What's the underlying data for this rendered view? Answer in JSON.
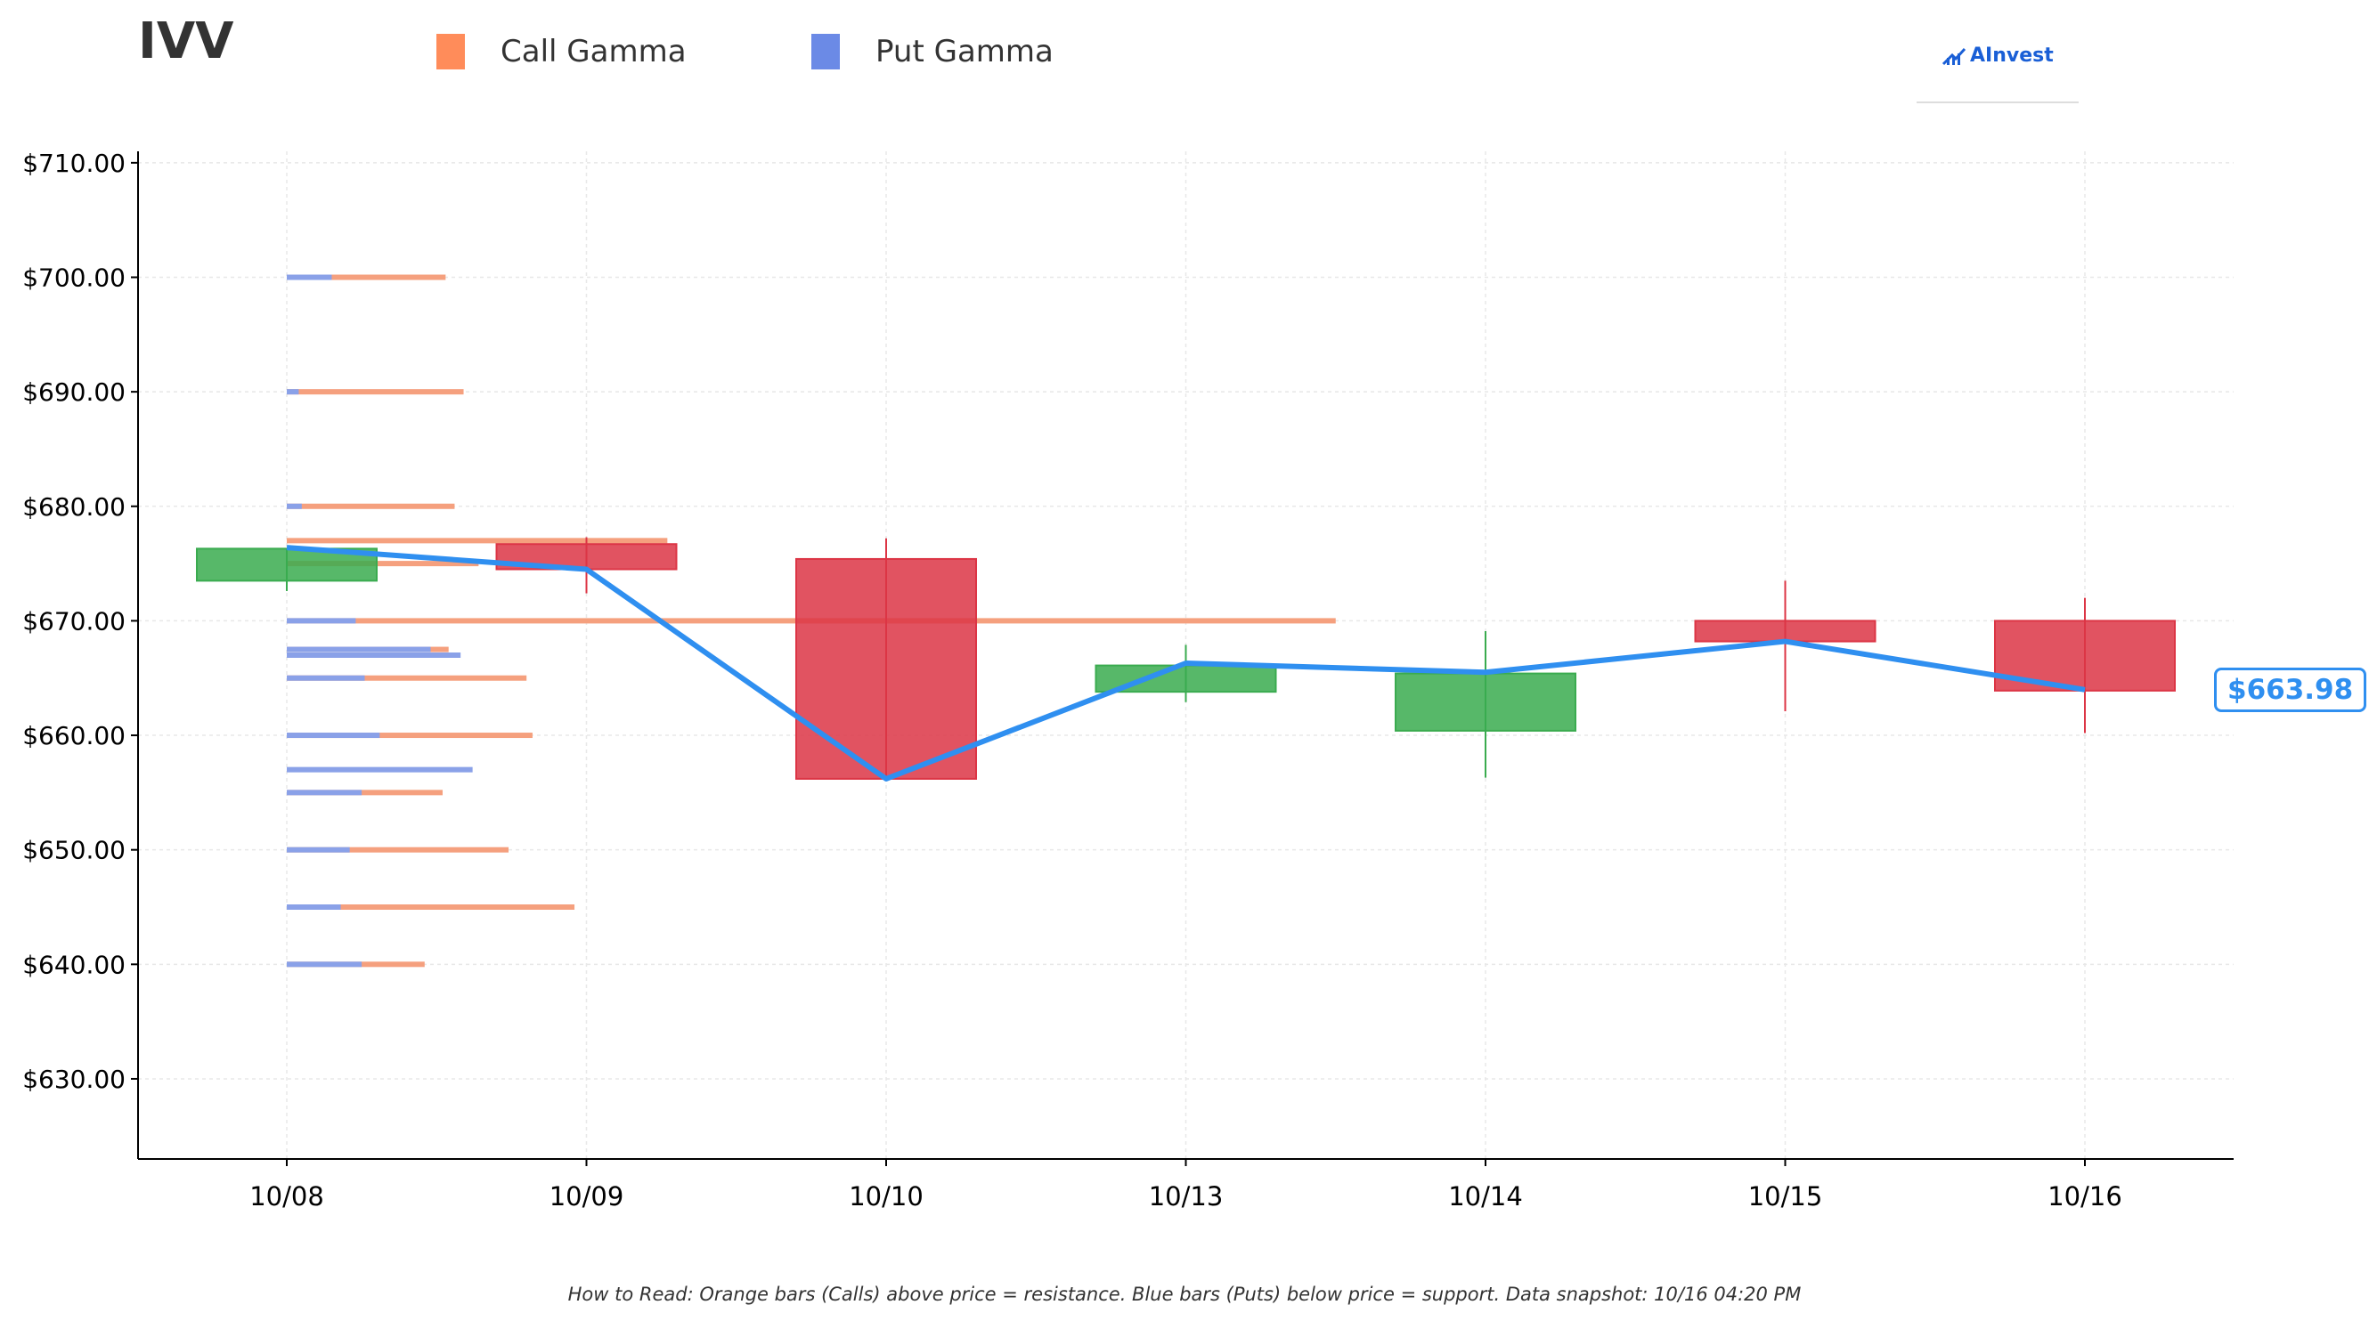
{
  "ticker": "IVV",
  "legend": {
    "call_label": "Call Gamma",
    "put_label": "Put Gamma",
    "call_color": "#ff8c5a",
    "put_color": "#6b8ae6"
  },
  "logo_text": "AInvest",
  "current_price_label": "$663.98",
  "footnote": "How to Read: Orange bars (Calls) above price = resistance. Blue bars (Puts) below price = support. Data snapshot: 10/16 04:20 PM",
  "colors": {
    "up": "#3aab4f",
    "down": "#dc3545",
    "price_line": "#2f8ff0",
    "call_bar": "#f5a07e",
    "put_bar": "#8aa1e8"
  },
  "chart_data": {
    "type": "candlestick",
    "categories": [
      "10/08",
      "10/09",
      "10/10",
      "10/13",
      "10/14",
      "10/15",
      "10/16"
    ],
    "ylim": [
      623,
      711
    ],
    "yticks": [
      630,
      640,
      650,
      660,
      670,
      680,
      690,
      700,
      710
    ],
    "ytick_labels": [
      "$630.00",
      "$640.00",
      "$650.00",
      "$660.00",
      "$670.00",
      "$680.00",
      "$690.00",
      "$700.00",
      "$710.00"
    ],
    "grid": true,
    "candles": [
      {
        "date": "10/08",
        "open": 673.5,
        "close": 676.3,
        "high": 676.3,
        "low": 672.6
      },
      {
        "date": "10/09",
        "open": 676.7,
        "close": 674.5,
        "high": 677.3,
        "low": 672.4
      },
      {
        "date": "10/10",
        "open": 675.4,
        "close": 656.2,
        "high": 677.2,
        "low": 656.2
      },
      {
        "date": "10/13",
        "open": 663.8,
        "close": 666.1,
        "high": 667.9,
        "low": 662.9
      },
      {
        "date": "10/14",
        "open": 660.4,
        "close": 665.4,
        "high": 669.1,
        "low": 656.3
      },
      {
        "date": "10/15",
        "open": 670.0,
        "close": 668.2,
        "high": 673.5,
        "low": 662.1
      },
      {
        "date": "10/16",
        "open": 670.0,
        "close": 663.9,
        "high": 672.0,
        "low": 660.2
      }
    ],
    "close_line": [
      676.4,
      674.5,
      656.2,
      666.3,
      665.5,
      668.2,
      663.98
    ],
    "gamma_levels": [
      {
        "strike": 700,
        "call": 0.53,
        "put": 0.15
      },
      {
        "strike": 690,
        "call": 0.59,
        "put": 0.04
      },
      {
        "strike": 680,
        "call": 0.56,
        "put": 0.05
      },
      {
        "strike": 677,
        "call": 1.27,
        "put": 0.0
      },
      {
        "strike": 675,
        "call": 0.64,
        "put": 0.0
      },
      {
        "strike": 670,
        "call": 3.5,
        "put": 0.23
      },
      {
        "strike": 667.5,
        "call": 0.54,
        "put": 0.48
      },
      {
        "strike": 667,
        "call": 0.0,
        "put": 0.58
      },
      {
        "strike": 665,
        "call": 0.8,
        "put": 0.26
      },
      {
        "strike": 660,
        "call": 0.82,
        "put": 0.31
      },
      {
        "strike": 657,
        "call": 0.0,
        "put": 0.62
      },
      {
        "strike": 655,
        "call": 0.52,
        "put": 0.25
      },
      {
        "strike": 650,
        "call": 0.74,
        "put": 0.21
      },
      {
        "strike": 645,
        "call": 0.96,
        "put": 0.18
      },
      {
        "strike": 640,
        "call": 0.46,
        "put": 0.25
      }
    ]
  }
}
